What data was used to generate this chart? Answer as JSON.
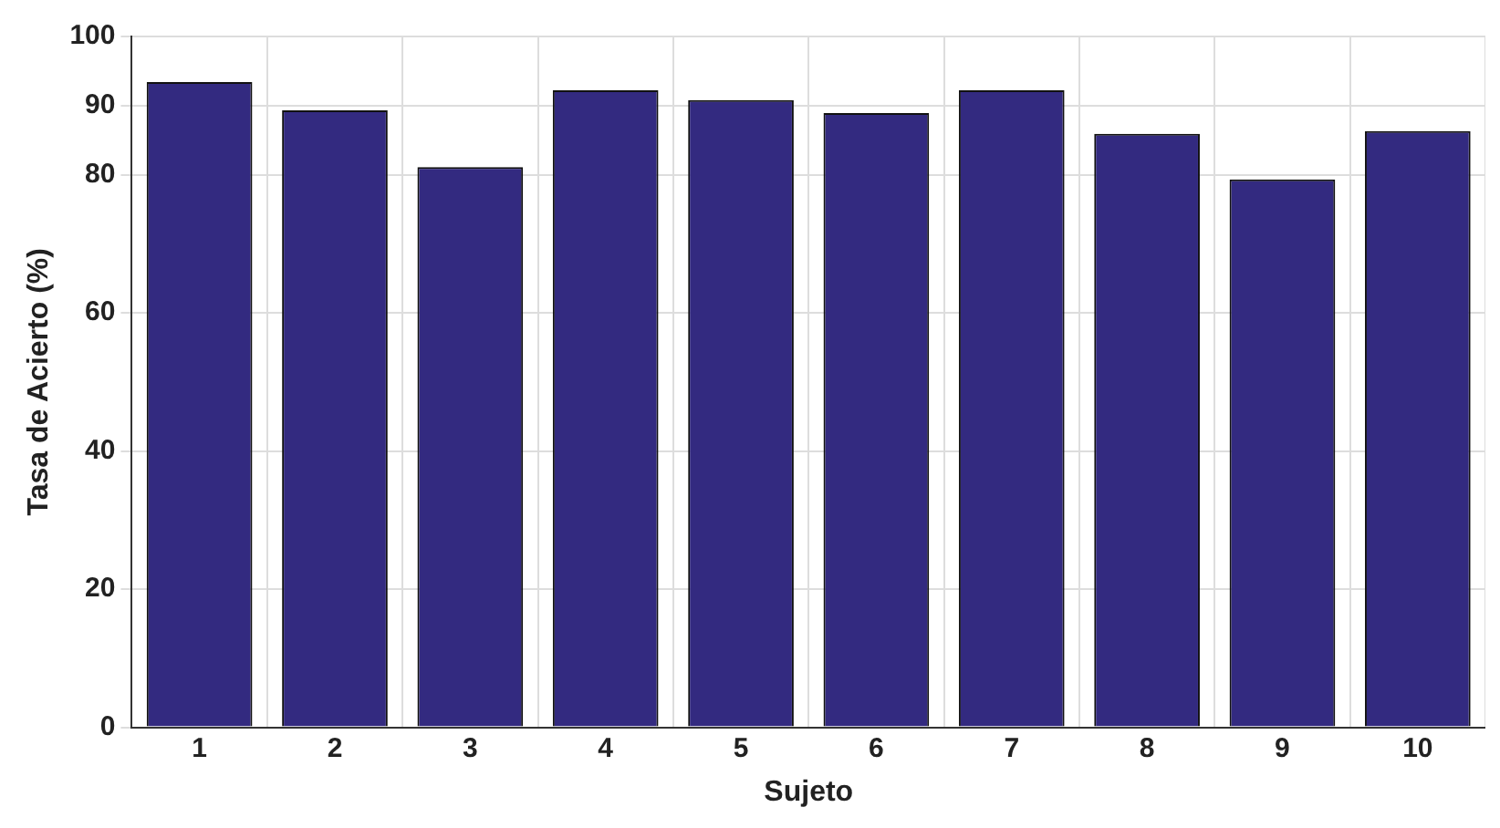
{
  "chart_data": {
    "type": "bar",
    "xlabel": "Sujeto",
    "ylabel": "Tasa de Acierto (%)",
    "categories": [
      "1",
      "2",
      "3",
      "4",
      "5",
      "6",
      "7",
      "8",
      "9",
      "10"
    ],
    "values": [
      93.4,
      89.3,
      81.1,
      92.2,
      90.8,
      88.9,
      92.2,
      85.9,
      79.3,
      86.3
    ],
    "color": "#332a80",
    "ylim": [
      0,
      100
    ],
    "yticks": [
      0,
      20,
      40,
      60,
      80,
      90,
      100
    ],
    "grid": true
  }
}
